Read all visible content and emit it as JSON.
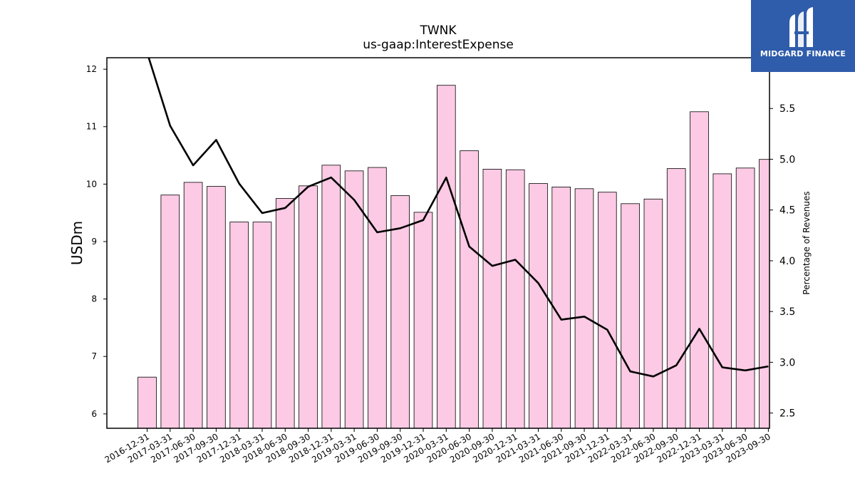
{
  "chart_data": {
    "type": "bar",
    "title": "TWNK",
    "subtitle": "us-gaap:InterestExpense",
    "ylabel": "USDm",
    "y2label": "Percentage of Revenues",
    "ylim": [
      5.75,
      12.2
    ],
    "y2lim": [
      2.35,
      6.0
    ],
    "yticks": [
      6,
      7,
      8,
      9,
      10,
      11,
      12
    ],
    "y2ticks": [
      "2.5",
      "3.0",
      "3.5",
      "4.0",
      "4.5",
      "5.0",
      "5.5"
    ],
    "categories": [
      "2016-12-31",
      "2017-03-31",
      "2017-06-30",
      "2017-09-30",
      "2017-12-31",
      "2018-03-31",
      "2018-06-30",
      "2018-09-30",
      "2018-12-31",
      "2019-03-31",
      "2019-06-30",
      "2019-09-30",
      "2019-12-31",
      "2020-03-31",
      "2020-06-30",
      "2020-09-30",
      "2020-12-31",
      "2021-03-31",
      "2021-06-30",
      "2021-09-30",
      "2021-12-31",
      "2022-03-31",
      "2022-06-30",
      "2022-09-30",
      "2022-12-31",
      "2023-03-31",
      "2023-06-30",
      "2023-09-30"
    ],
    "series": [
      {
        "kind": "bar",
        "axis": "left",
        "color": "#fccae4",
        "values": [
          6.64,
          9.81,
          10.03,
          9.96,
          9.34,
          9.34,
          9.75,
          9.97,
          10.33,
          10.23,
          10.29,
          9.8,
          9.51,
          11.72,
          10.58,
          10.26,
          10.25,
          10.01,
          9.95,
          9.92,
          9.86,
          9.66,
          9.74,
          10.27,
          11.26,
          10.18,
          10.28,
          10.43
        ]
      },
      {
        "kind": "line",
        "axis": "right",
        "color": "#000000",
        "values": [
          6.05,
          5.33,
          4.94,
          5.19,
          4.76,
          4.47,
          4.52,
          4.73,
          4.82,
          4.6,
          4.28,
          4.32,
          4.4,
          4.82,
          4.14,
          3.95,
          4.01,
          3.78,
          3.42,
          3.45,
          3.32,
          2.91,
          2.86,
          2.97,
          3.33,
          2.95,
          2.92,
          2.96
        ]
      }
    ],
    "grid": false,
    "legend": "none"
  },
  "logo": {
    "text": "MIDGARD FINANCE",
    "icon": "midgard-logo-icon",
    "background": "#2f5cab"
  }
}
